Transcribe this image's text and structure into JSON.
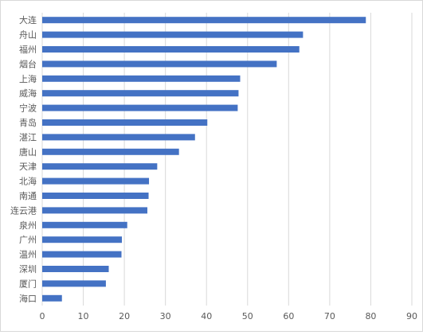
{
  "chart_data": {
    "type": "bar",
    "orientation": "horizontal",
    "categories": [
      "大连",
      "舟山",
      "福州",
      "烟台",
      "上海",
      "威海",
      "宁波",
      "青岛",
      "湛江",
      "唐山",
      "天津",
      "北海",
      "南通",
      "连云港",
      "泉州",
      "广州",
      "温州",
      "深圳",
      "厦门",
      "海口"
    ],
    "values": [
      78.8,
      63.5,
      62.6,
      57.1,
      48.2,
      47.8,
      47.6,
      40.2,
      37.2,
      33.3,
      28.0,
      26.0,
      25.9,
      25.6,
      20.7,
      19.4,
      19.3,
      16.2,
      15.5,
      4.8
    ],
    "xlim": [
      0,
      90
    ],
    "x_ticks": [
      "0",
      "10",
      "20",
      "30",
      "40",
      "50",
      "60",
      "70",
      "80",
      "90"
    ],
    "grid": "vertical",
    "legend": "none",
    "title": "",
    "xlabel": "",
    "ylabel": "",
    "colors": {
      "bar": "#4472c4",
      "grid": "#d9d9d9",
      "text": "#595959",
      "frame": "#d9d9d9"
    }
  }
}
